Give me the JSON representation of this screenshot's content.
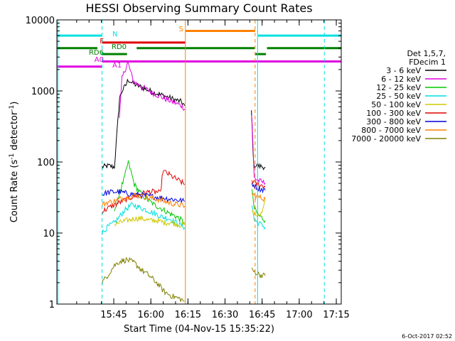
{
  "chart_data": {
    "type": "line",
    "title": "HESSI Observing Summary Count Rates",
    "xlabel": "Start Time (04-Nov-15 15:35:22)",
    "ylabel_main": "Count Rate (s",
    "ylabel_sup1": "-1",
    "ylabel_mid": " detector",
    "ylabel_sup2": "-1",
    "ylabel_end": ")",
    "yscale": "log",
    "xlim_min": [
      -13.37,
      101.63
    ],
    "ylim": [
      1,
      10000
    ],
    "x_ticks": [
      {
        "value": 9.63,
        "label": "15:45"
      },
      {
        "value": 24.63,
        "label": "16:00"
      },
      {
        "value": 39.63,
        "label": "16:15"
      },
      {
        "value": 54.63,
        "label": "16:30"
      },
      {
        "value": 69.63,
        "label": "16:45"
      },
      {
        "value": 84.63,
        "label": "17:00"
      },
      {
        "value": 99.63,
        "label": "17:15"
      }
    ],
    "y_ticks": [
      {
        "value": 1,
        "label": "1"
      },
      {
        "value": 10,
        "label": "10"
      },
      {
        "value": 100,
        "label": "100"
      },
      {
        "value": 1000,
        "label": "1000"
      },
      {
        "value": 10000,
        "label": "10000"
      }
    ],
    "legend_header": [
      "Det 1,5,7,",
      "FDecim 1"
    ],
    "series": [
      {
        "name": "3 - 6 keV",
        "color": "#000000",
        "segments": [
          [
            [
              4.9,
              85
            ],
            [
              7.5,
              88
            ],
            [
              9.9,
              85
            ],
            [
              12,
              800
            ],
            [
              13,
              1000
            ],
            [
              14.5,
              1200
            ],
            [
              15.5,
              1450
            ],
            [
              17,
              1300
            ],
            [
              19,
              1200
            ],
            [
              22,
              1080
            ],
            [
              25,
              980
            ],
            [
              28,
              900
            ],
            [
              31,
              830
            ],
            [
              34,
              760
            ],
            [
              37,
              700
            ],
            [
              38.3,
              620
            ]
          ],
          [
            [
              65.3,
              500
            ],
            [
              65.6,
              300
            ],
            [
              66.2,
              90
            ],
            [
              68,
              88
            ],
            [
              70.9,
              85
            ]
          ]
        ]
      },
      {
        "name": "6 - 12 keV",
        "color": "#e000e0",
        "segments": [
          [
            [
              11.9,
              400
            ],
            [
              13,
              1500
            ],
            [
              14,
              1900
            ],
            [
              15.3,
              2500
            ],
            [
              16.2,
              2000
            ],
            [
              17.5,
              1400
            ],
            [
              19,
              1250
            ],
            [
              22,
              1100
            ],
            [
              25,
              950
            ],
            [
              28,
              850
            ],
            [
              31,
              760
            ],
            [
              34,
              690
            ],
            [
              37,
              620
            ],
            [
              38.3,
              560
            ]
          ],
          [
            [
              65.4,
              450
            ],
            [
              65.6,
              350
            ],
            [
              66.4,
              60
            ],
            [
              68,
              55
            ],
            [
              70.9,
              50
            ]
          ]
        ]
      },
      {
        "name": "12 - 25 keV",
        "color": "#00c800",
        "segments": [
          [
            [
              9.9,
              22
            ],
            [
              11,
              25
            ],
            [
              12,
              38
            ],
            [
              14,
              60
            ],
            [
              15.5,
              100
            ],
            [
              16.5,
              75
            ],
            [
              18,
              48
            ],
            [
              20,
              38
            ],
            [
              23,
              30
            ],
            [
              26,
              25
            ],
            [
              29,
              22
            ],
            [
              32,
              19
            ],
            [
              35,
              17
            ],
            [
              38.3,
              14
            ]
          ],
          [
            [
              65.5,
              40
            ],
            [
              66.5,
              22
            ],
            [
              68,
              18
            ],
            [
              70.9,
              15
            ]
          ]
        ]
      },
      {
        "name": "25 - 50 keV",
        "color": "#00e0e0",
        "segments": [
          [
            [
              4.9,
              10
            ],
            [
              7,
              12
            ],
            [
              9.9,
              14
            ],
            [
              12,
              17
            ],
            [
              14,
              21
            ],
            [
              17,
              25
            ],
            [
              20,
              23
            ],
            [
              23,
              21
            ],
            [
              26,
              19
            ],
            [
              29,
              17
            ],
            [
              32,
              16
            ],
            [
              35,
              14
            ],
            [
              38.3,
              12
            ]
          ],
          [
            [
              65.5,
              25
            ],
            [
              66.5,
              15
            ],
            [
              68,
              14
            ],
            [
              70.9,
              12
            ]
          ]
        ]
      },
      {
        "name": "50 - 100 keV",
        "color": "#d0c800",
        "segments": [
          [
            [
              9.9,
              13
            ],
            [
              12,
              14
            ],
            [
              15,
              15
            ],
            [
              18,
              16
            ],
            [
              21,
              16
            ],
            [
              24,
              15
            ],
            [
              27,
              15
            ],
            [
              30,
              14
            ],
            [
              33,
              14
            ],
            [
              36,
              13
            ],
            [
              38.3,
              13
            ]
          ],
          [
            [
              65.5,
              20
            ],
            [
              67,
              18
            ],
            [
              68.5,
              17
            ],
            [
              70,
              22
            ],
            [
              70.9,
              30
            ]
          ]
        ]
      },
      {
        "name": "100 - 300 keV",
        "color": "#e00000",
        "segments": [
          [
            [
              4.9,
              20
            ],
            [
              7,
              22
            ],
            [
              9.9,
              25
            ],
            [
              12,
              27
            ],
            [
              15,
              30
            ],
            [
              18,
              33
            ],
            [
              21,
              36
            ],
            [
              24,
              38
            ],
            [
              27,
              38
            ],
            [
              28.5,
              36
            ],
            [
              29.5,
              75
            ],
            [
              31,
              70
            ],
            [
              34,
              60
            ],
            [
              37,
              52
            ],
            [
              38.3,
              48
            ]
          ],
          [
            [
              65.5,
              55
            ],
            [
              67,
              50
            ],
            [
              68.5,
              48
            ],
            [
              70.9,
              45
            ]
          ]
        ]
      },
      {
        "name": "300 - 800 keV",
        "color": "#0000e0",
        "segments": [
          [
            [
              4.9,
              35
            ],
            [
              7,
              37
            ],
            [
              9.9,
              38
            ],
            [
              12,
              38
            ],
            [
              15,
              36
            ],
            [
              18,
              35
            ],
            [
              21,
              34
            ],
            [
              24,
              33
            ],
            [
              27,
              32
            ],
            [
              30,
              31
            ],
            [
              33,
              30
            ],
            [
              36,
              29
            ],
            [
              38.3,
              28
            ]
          ],
          [
            [
              65.5,
              50
            ],
            [
              67,
              45
            ],
            [
              68.5,
              42
            ],
            [
              70.9,
              40
            ]
          ]
        ]
      },
      {
        "name": "800 - 7000 keV",
        "color": "#ff8000",
        "segments": [
          [
            [
              4.9,
              25
            ],
            [
              7,
              27
            ],
            [
              9.9,
              28
            ],
            [
              12,
              30
            ],
            [
              15,
              32
            ],
            [
              18,
              34
            ],
            [
              21,
              33
            ],
            [
              24,
              31
            ],
            [
              27,
              30
            ],
            [
              30,
              28
            ],
            [
              33,
              26
            ],
            [
              36,
              25
            ],
            [
              38.3,
              24
            ]
          ],
          [
            [
              65.5,
              35
            ],
            [
              67,
              33
            ],
            [
              68.5,
              32
            ],
            [
              70.9,
              30
            ]
          ]
        ]
      },
      {
        "name": "7000 - 20000 keV",
        "color": "#808000",
        "segments": [
          [
            [
              4.9,
              2
            ],
            [
              7,
              2.5
            ],
            [
              9.9,
              3.5
            ],
            [
              12,
              4
            ],
            [
              15,
              4.2
            ],
            [
              18,
              3.8
            ],
            [
              21,
              3
            ],
            [
              24,
              2.5
            ],
            [
              27,
              2
            ],
            [
              30,
              1.5
            ],
            [
              33,
              1.3
            ],
            [
              36,
              1.2
            ],
            [
              38.3,
              1.1
            ]
          ],
          [
            [
              65.5,
              3
            ],
            [
              67,
              2.8
            ],
            [
              68.5,
              2.6
            ],
            [
              70.9,
              2.5
            ]
          ]
        ]
      }
    ],
    "vertical_lines": [
      {
        "x": -13.0,
        "color": "#00e0e0",
        "style": "solid"
      },
      {
        "x": 4.9,
        "color": "#00e0e0",
        "style": "dashed"
      },
      {
        "x": 38.6,
        "color": "#ff8000",
        "style": "solid"
      },
      {
        "x": 66.8,
        "color": "#ff8000",
        "style": "dashed"
      },
      {
        "x": 67.8,
        "color": "#00e0e0",
        "style": "solid"
      },
      {
        "x": 94.8,
        "color": "#00e0e0",
        "style": "dashed"
      }
    ],
    "flag_bars": [
      {
        "label": "N",
        "color": "#00e0e0",
        "y": 6000,
        "segments": [
          [
            -13.37,
            4.9
          ],
          [
            68.0,
            101.63
          ]
        ]
      },
      {
        "label": "S",
        "color": "#ff8000",
        "y": 7000,
        "segments": [
          [
            38.6,
            66.8
          ]
        ]
      },
      {
        "label": "F",
        "color": "#e00000",
        "y": 4800,
        "segments": [
          [
            4.9,
            38.6
          ]
        ]
      },
      {
        "label": "RD0",
        "color": "#008000",
        "y": 4000,
        "segments": [
          [
            -13.37,
            3.0
          ],
          [
            18.9,
            66.6
          ],
          [
            71.6,
            101.63
          ]
        ]
      },
      {
        "label": "RD6",
        "color": "#008000",
        "y": 3300,
        "segments": [
          [
            4.6,
            15.0
          ],
          [
            66.8,
            71.2
          ]
        ]
      },
      {
        "label": "A0",
        "color": "#e000e0",
        "y": 2200,
        "segments": [
          [
            -13.37,
            4.9
          ]
        ]
      },
      {
        "label": "A1",
        "color": "#e000e0",
        "y": 2600,
        "segments": [
          [
            4.9,
            101.63
          ]
        ]
      }
    ]
  },
  "footer": "6-Oct-2017 02:52"
}
